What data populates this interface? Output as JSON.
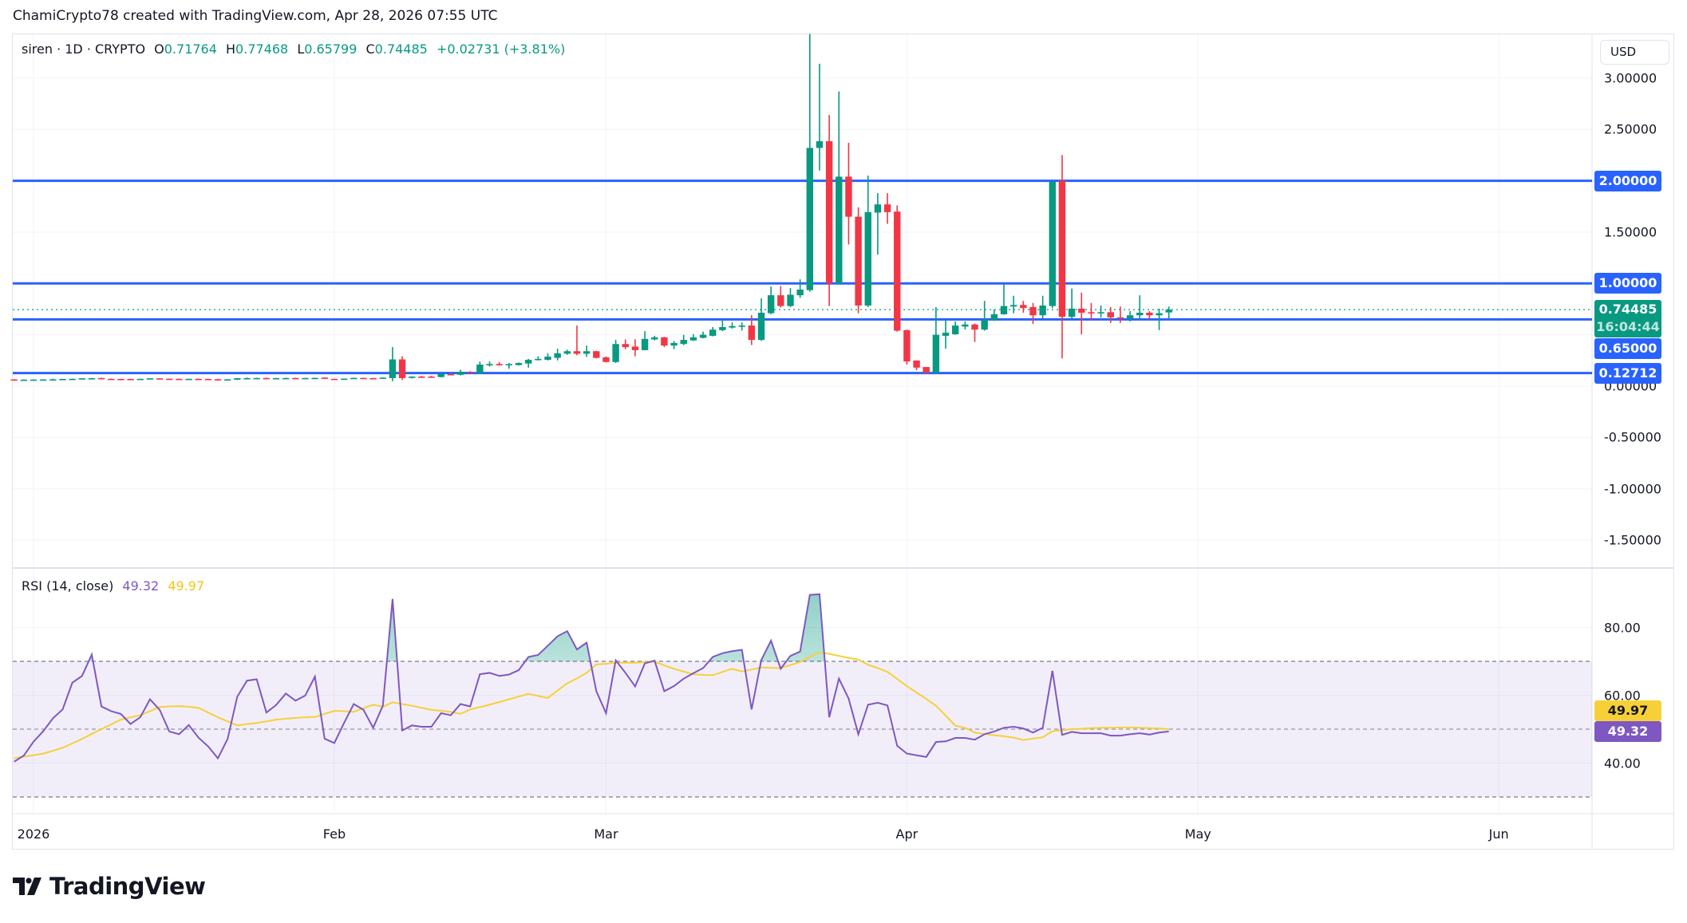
{
  "header": {
    "credit": "ChamiCrypto78 created with TradingView.com, Apr 28, 2026 07:55 UTC"
  },
  "legend": {
    "symbol": "siren · 1D · CRYPTO",
    "open_label": "O",
    "open": "0.71764",
    "high_label": "H",
    "high": "0.77468",
    "low_label": "L",
    "low": "0.65799",
    "close_label": "C",
    "close": "0.74485",
    "change": "+0.02731 (+3.81%)"
  },
  "currency_button": "USD",
  "colors": {
    "up": "#089981",
    "down": "#f23645",
    "hline": "#2962ff",
    "rsi": "#7e57c2",
    "rsi_ma": "#f7d038",
    "grid": "#f0f3fa"
  },
  "price_axis": {
    "ticks": [
      {
        "label": "3.00000",
        "value": 3.0
      },
      {
        "label": "2.50000",
        "value": 2.5
      },
      {
        "label": "1.50000",
        "value": 1.5
      },
      {
        "label": "0.00000",
        "value": 0.0
      },
      {
        "label": "-0.50000",
        "value": -0.5
      },
      {
        "label": "-1.00000",
        "value": -1.0
      },
      {
        "label": "-1.50000",
        "value": -1.5
      }
    ],
    "grid_values": [
      3.0,
      2.5,
      2.0,
      1.5,
      1.0,
      0.5,
      0.0,
      -0.5,
      -1.0,
      -1.5
    ],
    "range": [
      -1.72,
      3.45
    ]
  },
  "horizontal_lines": [
    {
      "label": "2.00000",
      "value": 2.0
    },
    {
      "label": "1.00000",
      "value": 1.0
    },
    {
      "label": "0.65000",
      "value": 0.65
    },
    {
      "label": "0.12712",
      "value": 0.12712
    }
  ],
  "last_price": {
    "label": "0.74485",
    "value": 0.74485,
    "countdown": "16:04:44"
  },
  "time_axis": [
    {
      "label": "2026",
      "date": "2026-01-01"
    },
    {
      "label": "Feb",
      "date": "2026-02-01"
    },
    {
      "label": "Mar",
      "date": "2026-03-01"
    },
    {
      "label": "Apr",
      "date": "2026-04-01"
    },
    {
      "label": "May",
      "date": "2026-05-01"
    },
    {
      "label": "Jun",
      "date": "2026-06-01"
    }
  ],
  "chart_data": {
    "type": "candlestick",
    "columns": [
      "date",
      "open",
      "high",
      "low",
      "close"
    ],
    "candles": [
      [
        "2025-12-30",
        0.065,
        0.068,
        0.06,
        0.062
      ],
      [
        "2025-12-31",
        0.062,
        0.066,
        0.06,
        0.063
      ],
      [
        "2026-01-01",
        0.063,
        0.066,
        0.061,
        0.064
      ],
      [
        "2026-01-02",
        0.064,
        0.067,
        0.062,
        0.065
      ],
      [
        "2026-01-03",
        0.065,
        0.072,
        0.063,
        0.066
      ],
      [
        "2026-01-04",
        0.066,
        0.072,
        0.065,
        0.07
      ],
      [
        "2026-01-05",
        0.07,
        0.074,
        0.068,
        0.071
      ],
      [
        "2026-01-06",
        0.071,
        0.076,
        0.069,
        0.076
      ],
      [
        "2026-01-07",
        0.076,
        0.08,
        0.074,
        0.077
      ],
      [
        "2026-01-08",
        0.079,
        0.082,
        0.068,
        0.071
      ],
      [
        "2026-01-09",
        0.071,
        0.073,
        0.069,
        0.07
      ],
      [
        "2026-01-10",
        0.07,
        0.072,
        0.068,
        0.069
      ],
      [
        "2026-01-11",
        0.07,
        0.072,
        0.068,
        0.069
      ],
      [
        "2026-01-12",
        0.069,
        0.072,
        0.067,
        0.071
      ],
      [
        "2026-01-13",
        0.073,
        0.076,
        0.071,
        0.076
      ],
      [
        "2026-01-14",
        0.076,
        0.078,
        0.073,
        0.074
      ],
      [
        "2026-01-15",
        0.072,
        0.074,
        0.069,
        0.07
      ],
      [
        "2026-01-16",
        0.071,
        0.073,
        0.069,
        0.07
      ],
      [
        "2026-01-17",
        0.069,
        0.072,
        0.068,
        0.071
      ],
      [
        "2026-01-18",
        0.071,
        0.073,
        0.069,
        0.07
      ],
      [
        "2026-01-19",
        0.07,
        0.072,
        0.068,
        0.069
      ],
      [
        "2026-01-20",
        0.067,
        0.071,
        0.063,
        0.064
      ],
      [
        "2026-01-21",
        0.064,
        0.069,
        0.062,
        0.066
      ],
      [
        "2026-01-22",
        0.062,
        0.078,
        0.06,
        0.077
      ],
      [
        "2026-01-23",
        0.077,
        0.083,
        0.074,
        0.078
      ],
      [
        "2026-01-24",
        0.078,
        0.082,
        0.076,
        0.079
      ],
      [
        "2026-01-25",
        0.079,
        0.083,
        0.075,
        0.077
      ],
      [
        "2026-01-26",
        0.077,
        0.08,
        0.075,
        0.078
      ],
      [
        "2026-01-27",
        0.078,
        0.082,
        0.076,
        0.079
      ],
      [
        "2026-01-28",
        0.079,
        0.082,
        0.076,
        0.077
      ],
      [
        "2026-01-29",
        0.077,
        0.081,
        0.075,
        0.079
      ],
      [
        "2026-01-30",
        0.079,
        0.083,
        0.077,
        0.08
      ],
      [
        "2026-01-31",
        0.083,
        0.085,
        0.069,
        0.071
      ],
      [
        "2026-02-01",
        0.071,
        0.073,
        0.069,
        0.07
      ],
      [
        "2026-02-02",
        0.07,
        0.074,
        0.066,
        0.073
      ],
      [
        "2026-02-03",
        0.072,
        0.083,
        0.07,
        0.08
      ],
      [
        "2026-02-04",
        0.08,
        0.082,
        0.077,
        0.078
      ],
      [
        "2026-02-05",
        0.078,
        0.081,
        0.074,
        0.077
      ],
      [
        "2026-02-06",
        0.077,
        0.085,
        0.075,
        0.083
      ],
      [
        "2026-02-07",
        0.078,
        0.38,
        0.047,
        0.26
      ],
      [
        "2026-02-08",
        0.26,
        0.29,
        0.06,
        0.078
      ],
      [
        "2026-02-09",
        0.08,
        0.095,
        0.075,
        0.093
      ],
      [
        "2026-02-10",
        0.093,
        0.1,
        0.085,
        0.088
      ],
      [
        "2026-02-11",
        0.093,
        0.1,
        0.085,
        0.088
      ],
      [
        "2026-02-12",
        0.088,
        0.14,
        0.085,
        0.117
      ],
      [
        "2026-02-13",
        0.117,
        0.125,
        0.11,
        0.115
      ],
      [
        "2026-02-14",
        0.11,
        0.16,
        0.105,
        0.14
      ],
      [
        "2026-02-15",
        0.14,
        0.145,
        0.13,
        0.137
      ],
      [
        "2026-02-16",
        0.125,
        0.24,
        0.12,
        0.21
      ],
      [
        "2026-02-17",
        0.21,
        0.24,
        0.19,
        0.215
      ],
      [
        "2026-02-18",
        0.215,
        0.235,
        0.2,
        0.21
      ],
      [
        "2026-02-19",
        0.21,
        0.225,
        0.17,
        0.215
      ],
      [
        "2026-02-20",
        0.205,
        0.23,
        0.2,
        0.225
      ],
      [
        "2026-02-21",
        0.22,
        0.265,
        0.18,
        0.256
      ],
      [
        "2026-02-22",
        0.256,
        0.29,
        0.25,
        0.265
      ],
      [
        "2026-02-23",
        0.256,
        0.32,
        0.25,
        0.287
      ],
      [
        "2026-02-24",
        0.275,
        0.365,
        0.25,
        0.32
      ],
      [
        "2026-02-25",
        0.315,
        0.355,
        0.305,
        0.34
      ],
      [
        "2026-02-26",
        0.34,
        0.59,
        0.3,
        0.315
      ],
      [
        "2026-02-27",
        0.315,
        0.395,
        0.285,
        0.34
      ],
      [
        "2026-02-28",
        0.34,
        0.345,
        0.27,
        0.275
      ],
      [
        "2026-03-01",
        0.28,
        0.29,
        0.23,
        0.235
      ],
      [
        "2026-03-02",
        0.235,
        0.45,
        0.225,
        0.41
      ],
      [
        "2026-03-03",
        0.41,
        0.455,
        0.36,
        0.38
      ],
      [
        "2026-03-04",
        0.385,
        0.455,
        0.29,
        0.35
      ],
      [
        "2026-03-05",
        0.35,
        0.535,
        0.35,
        0.46
      ],
      [
        "2026-03-06",
        0.455,
        0.49,
        0.445,
        0.475
      ],
      [
        "2026-03-07",
        0.475,
        0.48,
        0.38,
        0.395
      ],
      [
        "2026-03-08",
        0.395,
        0.44,
        0.36,
        0.42
      ],
      [
        "2026-03-09",
        0.41,
        0.5,
        0.4,
        0.45
      ],
      [
        "2026-03-10",
        0.445,
        0.505,
        0.44,
        0.475
      ],
      [
        "2026-03-11",
        0.47,
        0.53,
        0.465,
        0.5
      ],
      [
        "2026-03-12",
        0.49,
        0.575,
        0.485,
        0.55
      ],
      [
        "2026-03-13",
        0.545,
        0.645,
        0.535,
        0.575
      ],
      [
        "2026-03-14",
        0.57,
        0.62,
        0.56,
        0.585
      ],
      [
        "2026-03-15",
        0.58,
        0.62,
        0.54,
        0.59
      ],
      [
        "2026-03-16",
        0.59,
        0.69,
        0.4,
        0.45
      ],
      [
        "2026-03-17",
        0.45,
        0.855,
        0.44,
        0.715
      ],
      [
        "2026-03-18",
        0.71,
        0.97,
        0.7,
        0.885
      ],
      [
        "2026-03-19",
        0.885,
        0.975,
        0.765,
        0.78
      ],
      [
        "2026-03-20",
        0.78,
        0.955,
        0.77,
        0.89
      ],
      [
        "2026-03-21",
        0.885,
        1.04,
        0.86,
        0.94
      ],
      [
        "2026-03-22",
        0.935,
        3.43,
        0.92,
        2.32
      ],
      [
        "2026-03-23",
        2.32,
        3.14,
        2.1,
        2.385
      ],
      [
        "2026-03-24",
        2.385,
        2.64,
        0.78,
        1.0
      ],
      [
        "2026-03-25",
        1.0,
        2.87,
        0.99,
        2.04
      ],
      [
        "2026-03-26",
        2.04,
        2.37,
        1.38,
        1.65
      ],
      [
        "2026-03-27",
        1.65,
        1.74,
        0.71,
        0.785
      ],
      [
        "2026-03-28",
        0.785,
        2.05,
        0.77,
        1.695
      ],
      [
        "2026-03-29",
        1.69,
        1.88,
        1.28,
        1.77
      ],
      [
        "2026-03-30",
        1.77,
        1.88,
        1.58,
        1.695
      ],
      [
        "2026-03-31",
        1.7,
        1.76,
        0.53,
        0.54
      ],
      [
        "2026-04-01",
        0.545,
        0.55,
        0.21,
        0.24
      ],
      [
        "2026-04-02",
        0.25,
        0.25,
        0.155,
        0.18
      ],
      [
        "2026-04-03",
        0.186,
        0.186,
        0.127,
        0.13
      ],
      [
        "2026-04-04",
        0.13,
        0.77,
        0.127,
        0.5
      ],
      [
        "2026-04-05",
        0.49,
        0.645,
        0.365,
        0.52
      ],
      [
        "2026-04-06",
        0.505,
        0.63,
        0.5,
        0.59
      ],
      [
        "2026-04-07",
        0.58,
        0.63,
        0.55,
        0.6
      ],
      [
        "2026-04-08",
        0.6,
        0.61,
        0.43,
        0.55
      ],
      [
        "2026-04-09",
        0.55,
        0.83,
        0.54,
        0.645
      ],
      [
        "2026-04-10",
        0.64,
        0.745,
        0.635,
        0.7
      ],
      [
        "2026-04-11",
        0.7,
        1.0,
        0.695,
        0.78
      ],
      [
        "2026-04-12",
        0.775,
        0.88,
        0.71,
        0.79
      ],
      [
        "2026-04-13",
        0.79,
        0.83,
        0.715,
        0.76
      ],
      [
        "2026-04-14",
        0.77,
        0.81,
        0.605,
        0.69
      ],
      [
        "2026-04-15",
        0.69,
        0.88,
        0.66,
        0.785
      ],
      [
        "2026-04-16",
        0.78,
        2.0,
        0.76,
        1.99
      ],
      [
        "2026-04-17",
        2.0,
        2.25,
        0.27,
        0.675
      ],
      [
        "2026-04-18",
        0.675,
        0.95,
        0.66,
        0.755
      ],
      [
        "2026-04-19",
        0.755,
        0.91,
        0.505,
        0.715
      ],
      [
        "2026-04-20",
        0.72,
        0.81,
        0.64,
        0.715
      ],
      [
        "2026-04-21",
        0.715,
        0.785,
        0.67,
        0.72
      ],
      [
        "2026-04-22",
        0.72,
        0.77,
        0.615,
        0.67
      ],
      [
        "2026-04-23",
        0.67,
        0.775,
        0.615,
        0.665
      ],
      [
        "2026-04-24",
        0.66,
        0.73,
        0.63,
        0.69
      ],
      [
        "2026-04-25",
        0.69,
        0.885,
        0.645,
        0.715
      ],
      [
        "2026-04-26",
        0.715,
        0.73,
        0.65,
        0.69
      ],
      [
        "2026-04-27",
        0.69,
        0.755,
        0.545,
        0.71
      ],
      [
        "2026-04-28",
        0.71764,
        0.77468,
        0.65799,
        0.74485
      ]
    ],
    "indicator": {
      "title": "RSI (14, close)",
      "rsi_value": "49.32",
      "ma_value": "49.97",
      "levels": {
        "upper": 70,
        "middle": 50,
        "lower": 30
      },
      "ticks": [
        {
          "label": "80.00",
          "value": 80
        },
        {
          "label": "60.00",
          "value": 60
        },
        {
          "label": "40.00",
          "value": 40
        }
      ],
      "range": [
        22,
        94
      ],
      "rsi": [
        40.4,
        42.2,
        46.3,
        49.4,
        53.2,
        55.8,
        63.7,
        65.7,
        72,
        56.7,
        55.3,
        54.5,
        51.5,
        53.5,
        58.8,
        55.7,
        49.3,
        48.5,
        51.2,
        47.5,
        44.9,
        41.4,
        47.1,
        59.6,
        64.3,
        64.7,
        54.9,
        57.1,
        60.5,
        58.4,
        59.9,
        65.5,
        47.2,
        45.9,
        51.8,
        57.4,
        55.7,
        50.4,
        56.9,
        88.4,
        49.6,
        51.1,
        50.7,
        50.7,
        54.7,
        54.1,
        57.4,
        56.7,
        66.2,
        66.6,
        65.7,
        66.1,
        67.4,
        71.3,
        71.9,
        74.6,
        77.4,
        78.9,
        73.5,
        75.5,
        61.2,
        54.7,
        70.3,
        66.6,
        62.6,
        69.4,
        70.2,
        61.2,
        62.7,
        64.9,
        66.5,
        68,
        71.3,
        72.4,
        73,
        73.4,
        55.8,
        70.4,
        76.1,
        67.8,
        71.6,
        72.9,
        89.6,
        89.8,
        53.5,
        64.9,
        59,
        48.5,
        57.2,
        57.8,
        57,
        45.1,
        42.8,
        42.3,
        41.8,
        46.2,
        46.4,
        47.4,
        47.4,
        46.9,
        48.5,
        49.3,
        50.4,
        50.7,
        50.2,
        49,
        50.4,
        67.2,
        48.3,
        49.2,
        48.8,
        48.8,
        48.8,
        48.1,
        48.1,
        48.5,
        48.8,
        48.4,
        49,
        49.32
      ],
      "ma": [
        41.4,
        41.9,
        42.3,
        42.8,
        43.6,
        44.5,
        45.8,
        47.1,
        48.6,
        50,
        51.4,
        52.8,
        53.5,
        54.1,
        55.3,
        56.5,
        56.7,
        56.8,
        56.6,
        56.3,
        54.9,
        53.5,
        52.3,
        51.1,
        51.5,
        51.8,
        52.3,
        52.8,
        53.1,
        53.3,
        53.5,
        53.6,
        54.5,
        55.4,
        55.3,
        55.1,
        56.2,
        57.2,
        56.6,
        57.9,
        57.4,
        56.9,
        56.3,
        55.7,
        55.4,
        55.1,
        54.5,
        55.8,
        56.5,
        57.2,
        58,
        58.8,
        59.6,
        60.4,
        59.8,
        59.2,
        61.4,
        63.5,
        65,
        66.6,
        69.1,
        69.3,
        69.6,
        69.6,
        69.6,
        69.8,
        69.9,
        68.8,
        67.8,
        67,
        66.2,
        66,
        65.9,
        66.9,
        67.8,
        67,
        67.6,
        68.2,
        68.1,
        68,
        68.9,
        69.8,
        71.3,
        72.7,
        72.2,
        71.6,
        71,
        70.5,
        69,
        68,
        66.9,
        64.8,
        62.7,
        60.8,
        58.9,
        56.9,
        54,
        51,
        50.4,
        49,
        48.6,
        48.2,
        47.9,
        47.5,
        46.8,
        47.2,
        47.6,
        49.4,
        49.7,
        50,
        50.1,
        50.3,
        50.4,
        50.4,
        50.5,
        50.5,
        50.4,
        50.3,
        50.2,
        49.97
      ]
    }
  },
  "brand": {
    "name": "TradingView"
  }
}
